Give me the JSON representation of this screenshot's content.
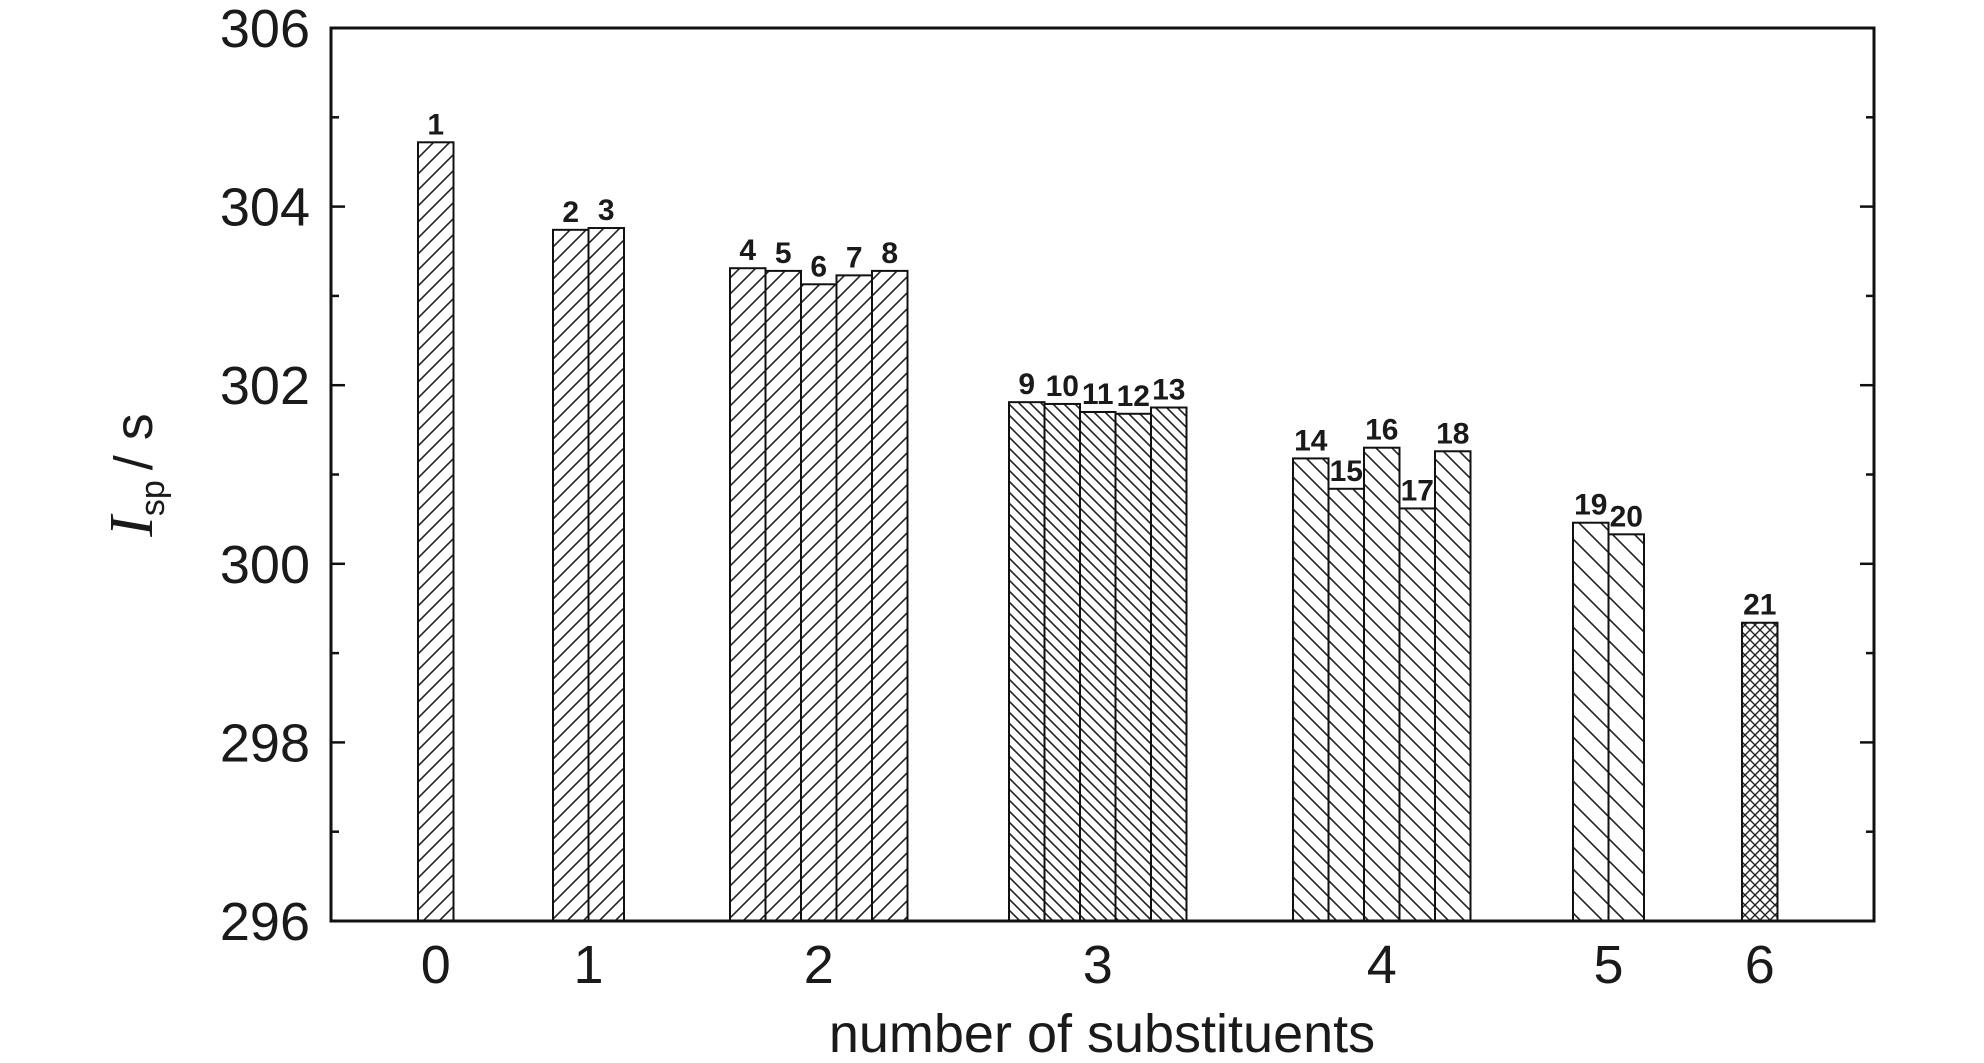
{
  "chart_data": {
    "type": "bar",
    "xlabel": "number of substituents",
    "ylabel": {
      "main": "I",
      "sub": "sp",
      "unit": "/ s"
    },
    "ylim": [
      296,
      306
    ],
    "yticks": [
      296,
      298,
      300,
      302,
      304,
      306
    ],
    "grid": false,
    "legend": "none",
    "groups": [
      {
        "x_label": "0",
        "pattern": "diag-up",
        "bars": [
          {
            "id": "1",
            "value": 304.72
          }
        ]
      },
      {
        "x_label": "1",
        "pattern": "diag-up",
        "bars": [
          {
            "id": "2",
            "value": 303.74
          },
          {
            "id": "3",
            "value": 303.76
          }
        ]
      },
      {
        "x_label": "2",
        "pattern": "diag-up",
        "bars": [
          {
            "id": "4",
            "value": 303.31
          },
          {
            "id": "5",
            "value": 303.28
          },
          {
            "id": "6",
            "value": 303.13
          },
          {
            "id": "7",
            "value": 303.23
          },
          {
            "id": "8",
            "value": 303.28
          }
        ]
      },
      {
        "x_label": "3",
        "pattern": "diag-down-dense",
        "bars": [
          {
            "id": "9",
            "value": 301.81
          },
          {
            "id": "10",
            "value": 301.79
          },
          {
            "id": "11",
            "value": 301.7
          },
          {
            "id": "12",
            "value": 301.68
          },
          {
            "id": "13",
            "value": 301.75
          }
        ]
      },
      {
        "x_label": "4",
        "pattern": "diag-down",
        "bars": [
          {
            "id": "14",
            "value": 301.18
          },
          {
            "id": "15",
            "value": 300.84
          },
          {
            "id": "16",
            "value": 301.3
          },
          {
            "id": "17",
            "value": 300.62
          },
          {
            "id": "18",
            "value": 301.26
          }
        ]
      },
      {
        "x_label": "5",
        "pattern": "diag-down-sparse",
        "bars": [
          {
            "id": "19",
            "value": 300.46
          },
          {
            "id": "20",
            "value": 300.33
          }
        ]
      },
      {
        "x_label": "6",
        "pattern": "cross",
        "bars": [
          {
            "id": "21",
            "value": 299.34
          }
        ]
      }
    ]
  }
}
